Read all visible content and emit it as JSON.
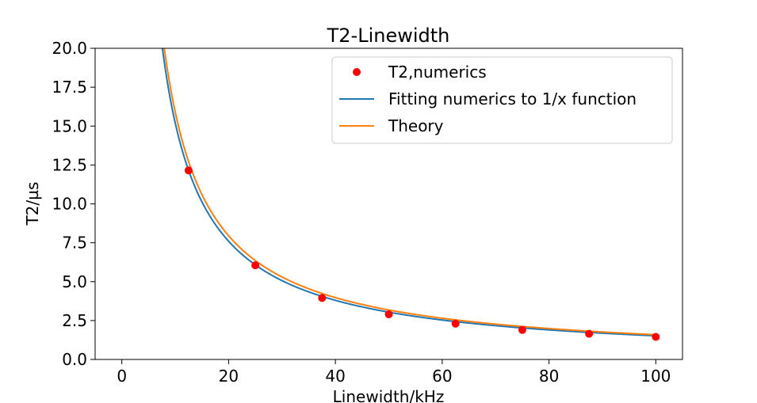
{
  "chart_data": {
    "type": "line",
    "title": "T2-Linewidth",
    "xlabel": "Linewidth/kHz",
    "ylabel": "T2/µs",
    "xlim": [
      -5,
      105
    ],
    "ylim": [
      0,
      20
    ],
    "xticks": [
      0,
      20,
      40,
      60,
      80,
      100
    ],
    "yticks": [
      0.0,
      2.5,
      5.0,
      7.5,
      10.0,
      12.5,
      15.0,
      17.5,
      20.0
    ],
    "ytick_labels": [
      "0.0",
      "2.5",
      "5.0",
      "7.5",
      "10.0",
      "12.5",
      "15.0",
      "17.5",
      "20.0"
    ],
    "grid": false,
    "legend_position": "top-right",
    "series": [
      {
        "name": "T2,numerics",
        "style": "scatter",
        "color": "#ff0000",
        "x": [
          12.5,
          25,
          37.5,
          50,
          62.5,
          75,
          87.5,
          100
        ],
        "y": [
          12.15,
          6.05,
          3.95,
          2.9,
          2.3,
          1.9,
          1.65,
          1.45
        ]
      },
      {
        "name": "Fitting numerics to 1/x function",
        "style": "line",
        "color": "#1f77b4",
        "function": "a/x",
        "coefficient": 152,
        "x_range": [
          1,
          100
        ]
      },
      {
        "name": "Theory",
        "style": "line",
        "color": "#ff7f0e",
        "function": "a/x",
        "coefficient": 159,
        "x_range": [
          1,
          100
        ]
      }
    ]
  }
}
